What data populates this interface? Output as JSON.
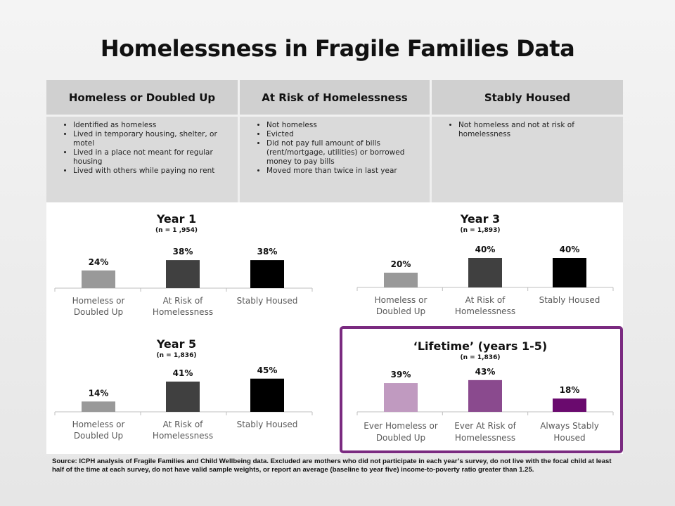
{
  "title": "Homelessness in Fragile Families Data",
  "table": {
    "columns": [
      {
        "header": "Homeless or Doubled Up",
        "bullets": [
          "Identified as homeless",
          "Lived in temporary housing, shelter, or motel",
          "Lived in a place not meant for regular housing",
          "Lived with others while paying no rent"
        ]
      },
      {
        "header": "At Risk of Homelessness",
        "bullets": [
          "Not homeless",
          "Evicted",
          "Did not pay full amount of bills (rent/mortgage, utilities) or borrowed money to pay bills",
          "Moved more than twice in last year"
        ]
      },
      {
        "header": "Stably Housed",
        "bullets": [
          "Not homeless and not at risk of homelessness"
        ]
      }
    ]
  },
  "chart_data": [
    {
      "type": "bar",
      "title": "Year 1",
      "subtitle": "(n = 1 ,954)",
      "categories": [
        "Homeless or Doubled Up",
        "At Risk of Homelessness",
        "Stably Housed"
      ],
      "values": [
        24,
        38,
        38
      ],
      "data_labels": [
        "24%",
        "38%",
        "38%"
      ],
      "colors": [
        "#999999",
        "#404040",
        "#000000"
      ],
      "ylim": [
        0,
        100
      ],
      "grid": false,
      "highlighted": false
    },
    {
      "type": "bar",
      "title": "Year 3",
      "subtitle": "(n = 1,893)",
      "categories": [
        "Homeless or Doubled Up",
        "At Risk of Homelessness",
        "Stably Housed"
      ],
      "values": [
        20,
        40,
        40
      ],
      "data_labels": [
        "20%",
        "40%",
        "40%"
      ],
      "colors": [
        "#999999",
        "#404040",
        "#000000"
      ],
      "ylim": [
        0,
        100
      ],
      "grid": false,
      "highlighted": false
    },
    {
      "type": "bar",
      "title": "Year 5",
      "subtitle": "(n = 1,836)",
      "categories": [
        "Homeless or Doubled Up",
        "At Risk of Homelessness",
        "Stably Housed"
      ],
      "values": [
        14,
        41,
        45
      ],
      "data_labels": [
        "14%",
        "41%",
        "45%"
      ],
      "colors": [
        "#999999",
        "#404040",
        "#000000"
      ],
      "ylim": [
        0,
        100
      ],
      "grid": false,
      "highlighted": false
    },
    {
      "type": "bar",
      "title": "‘Lifetime’ (years 1-5)",
      "subtitle": "(n = 1,836)",
      "categories": [
        "Ever Homeless or Doubled Up",
        "Ever At Risk of Homelessness",
        "Always Stably Housed"
      ],
      "values": [
        39,
        43,
        18
      ],
      "data_labels": [
        "39%",
        "43%",
        "18%"
      ],
      "colors": [
        "#c09ac0",
        "#8a4a8e",
        "#6a0a6e"
      ],
      "ylim": [
        0,
        100
      ],
      "grid": false,
      "highlighted": true,
      "frame_color": "#7a2a80"
    }
  ],
  "source_note": "Source: ICPH analysis of Fragile Families and Child Wellbeing data. Excluded are mothers who did not participate in each year’s survey, do not live with the focal child at least half of the time at each survey, do not have valid sample weights, or report an average (baseline to year five) income-to-poverty ratio greater than 1.25."
}
